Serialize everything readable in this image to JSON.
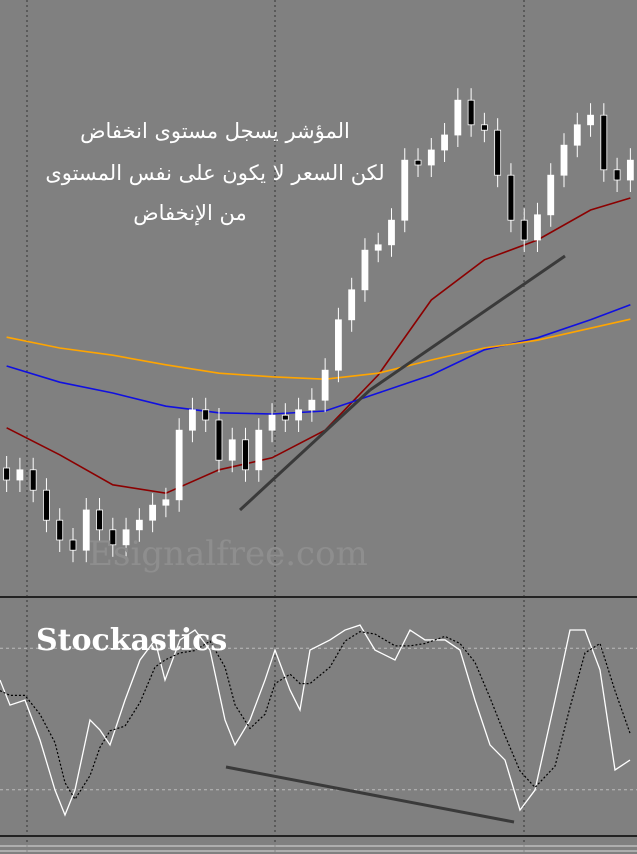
{
  "chart_data": [
    {
      "type": "candlestick",
      "annotation": [
        "المؤشر يسجل مستوى انخفاض",
        "لكن السعر لا يكون على نفس المستوى",
        "من الإنخفاض"
      ],
      "watermark": "Esignalfree.com",
      "xlim": [
        -0.5,
        47.5
      ],
      "ylim": [
        0,
        100
      ],
      "x": [
        0,
        1,
        2,
        3,
        4,
        5,
        6,
        7,
        8,
        9,
        10,
        11,
        12,
        13,
        14,
        15,
        16,
        17,
        18,
        19,
        20,
        21,
        22,
        23,
        24,
        25,
        26,
        27,
        28,
        29,
        30,
        31,
        32,
        33,
        34,
        35,
        36,
        37,
        38,
        39,
        40,
        41,
        42,
        43,
        44,
        45,
        46,
        47
      ],
      "open": [
        22,
        20,
        21.7,
        18.3,
        13.3,
        10,
        8.3,
        15,
        11.7,
        9.2,
        11.7,
        13.3,
        15.8,
        16.7,
        28.3,
        31.7,
        30,
        23.3,
        26.7,
        21.7,
        28.3,
        30.8,
        30,
        31.7,
        33.3,
        38.3,
        46.7,
        51.7,
        58.3,
        59.2,
        63.3,
        73.3,
        72.5,
        75,
        77.5,
        83.3,
        79.2,
        78.3,
        70.8,
        63.3,
        60,
        64.2,
        70.8,
        75.8,
        79.2,
        80.8,
        71.7,
        70
      ],
      "high": [
        24,
        23.7,
        23.7,
        20.3,
        15.3,
        12,
        17,
        17,
        13.7,
        13.7,
        15.3,
        17.8,
        18.7,
        30.3,
        33.7,
        33.7,
        32,
        28.7,
        28.7,
        30.3,
        32.8,
        32.8,
        33.7,
        35.3,
        40.3,
        48.7,
        53.7,
        60.3,
        61.2,
        65.3,
        75.3,
        75.3,
        77,
        79.5,
        85.3,
        85.3,
        81.2,
        80.3,
        72.8,
        65.3,
        66.2,
        72.8,
        77.8,
        81.2,
        82.8,
        82.8,
        73.7,
        75.3
      ],
      "low": [
        18,
        18,
        16.3,
        11.3,
        8,
        6.3,
        6.3,
        9.7,
        7.2,
        7.2,
        9.7,
        11.3,
        13.8,
        14.7,
        26.3,
        28,
        21.3,
        21.3,
        19.7,
        19.7,
        26.3,
        28,
        28,
        29.7,
        31.3,
        36.3,
        44.7,
        49.7,
        56.3,
        57.2,
        61.3,
        70.5,
        70.5,
        73,
        75.5,
        77.2,
        76.3,
        68.8,
        61.3,
        58,
        58,
        62.2,
        68.8,
        73.8,
        77.2,
        69.7,
        68,
        68
      ],
      "close": [
        20,
        21.7,
        18.3,
        13.3,
        10,
        8.3,
        15,
        11.7,
        9.2,
        11.7,
        13.3,
        15.8,
        16.7,
        28.3,
        31.7,
        30,
        23.3,
        26.7,
        21.7,
        28.3,
        30.8,
        30,
        31.7,
        33.3,
        38.3,
        46.7,
        51.7,
        58.3,
        59.2,
        63.3,
        73.3,
        72.5,
        75,
        77.5,
        83.3,
        79.2,
        78.3,
        70.8,
        63.3,
        60,
        64.2,
        70.8,
        75.8,
        79.2,
        80.8,
        71.7,
        70,
        73.3
      ],
      "up_color": "#ffffff",
      "down_color": "#000000",
      "series": [
        {
          "color": "#8b0000",
          "x": [
            0,
            4,
            8,
            12,
            16,
            20,
            24,
            28,
            32,
            36,
            40,
            44,
            47
          ],
          "values": [
            28.7,
            24.2,
            19.2,
            17.8,
            21.7,
            23.7,
            28.3,
            37.5,
            50,
            56.7,
            60,
            65,
            67
          ]
        },
        {
          "color": "#1010e0",
          "x": [
            0,
            4,
            8,
            12,
            16,
            20,
            24,
            28,
            32,
            36,
            40,
            44,
            47
          ],
          "values": [
            39,
            36.3,
            34.5,
            32.3,
            31.2,
            31,
            31.5,
            34.5,
            37.5,
            41.7,
            43.7,
            46.7,
            49.2
          ]
        },
        {
          "color": "#ffa500",
          "x": [
            0,
            4,
            8,
            12,
            16,
            20,
            24,
            28,
            32,
            36,
            40,
            44,
            47
          ],
          "values": [
            43.8,
            42,
            40.8,
            39.2,
            37.8,
            37.2,
            36.8,
            37.8,
            40,
            42,
            43.3,
            45.3,
            46.8
          ]
        }
      ]
    },
    {
      "type": "line",
      "title": "Stockastics",
      "xlim": [
        0,
        637
      ],
      "ylim": [
        0,
        100
      ],
      "levels": [
        20,
        80
      ],
      "x": [
        0,
        10,
        25,
        40,
        55,
        65,
        75,
        90,
        100,
        110,
        125,
        140,
        155,
        165,
        180,
        195,
        210,
        225,
        235,
        250,
        265,
        275,
        290,
        300,
        310,
        330,
        345,
        360,
        375,
        395,
        410,
        425,
        445,
        460,
        475,
        490,
        505,
        520,
        535,
        555,
        570,
        585,
        600,
        615,
        630
      ],
      "series": [
        {
          "color": "#ffffff",
          "dash": "solid",
          "values": [
            66.5,
            55.9,
            58,
            41.1,
            19.9,
            9.3,
            19.9,
            49.6,
            45.3,
            39,
            58,
            75,
            83.5,
            66.5,
            83.5,
            87.7,
            79.2,
            49.6,
            39,
            49.6,
            66.5,
            79.2,
            62.3,
            53.8,
            79.2,
            83.5,
            87.7,
            89.8,
            79.2,
            75,
            87.7,
            83.5,
            83.5,
            79.2,
            58,
            39,
            32.6,
            11.4,
            19.9,
            58,
            87.7,
            87.7,
            70.8,
            28.4,
            32.6
          ]
        },
        {
          "color": "#000000",
          "dash": "dotted",
          "values": [
            62,
            60,
            60,
            52,
            40,
            23,
            16,
            26,
            38,
            45,
            47,
            57,
            72,
            75,
            78,
            79,
            83,
            72,
            56,
            46,
            52,
            65,
            69,
            65,
            65,
            72,
            83,
            87,
            86,
            81,
            81,
            82,
            85,
            82,
            74,
            59,
            43,
            28,
            21,
            30,
            55,
            78,
            82,
            62,
            44
          ]
        }
      ]
    }
  ]
}
